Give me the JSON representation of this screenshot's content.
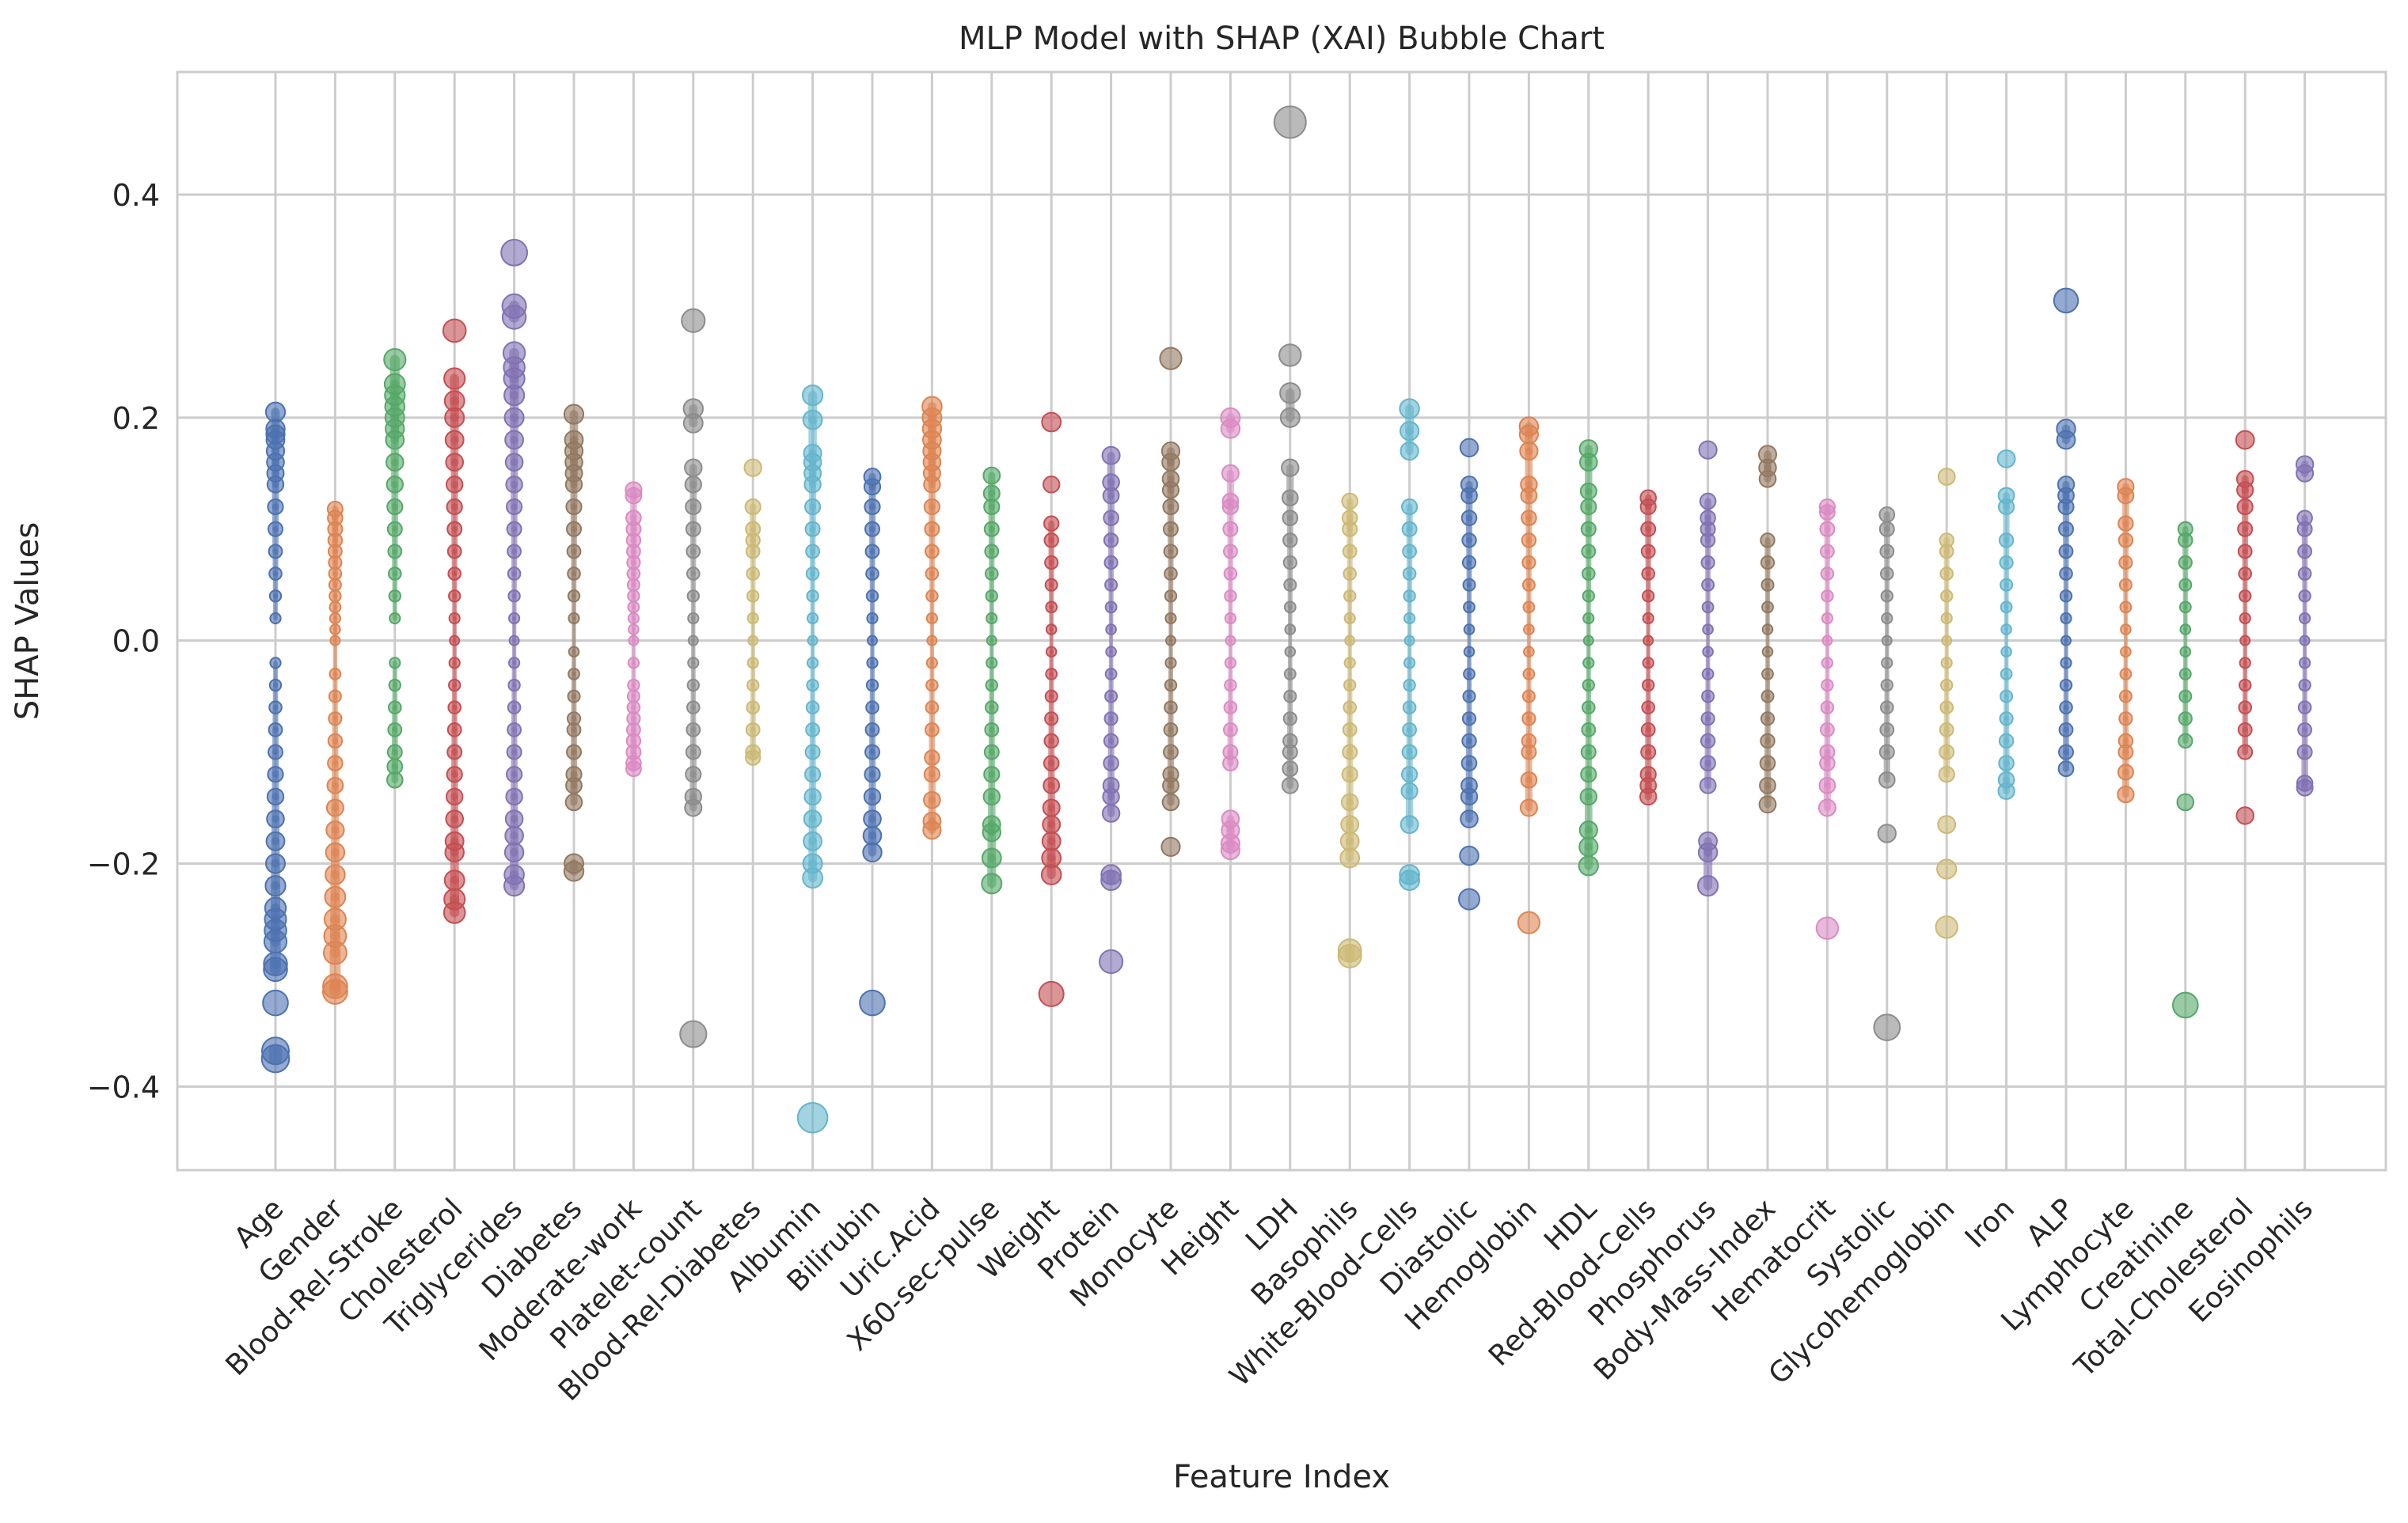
{
  "chart_data": {
    "type": "scatter",
    "title": "MLP Model with SHAP (XAI) Bubble Chart",
    "xlabel": "Feature Index",
    "ylabel": "SHAP Values",
    "ylim": [
      -0.475,
      0.51
    ],
    "yticks": [
      -0.4,
      -0.2,
      0.0,
      0.2,
      0.4
    ],
    "ytick_labels": [
      "−0.4",
      "−0.2",
      "0.0",
      "0.2",
      "0.4"
    ],
    "grid": true,
    "palette": [
      "#4c72b0",
      "#dd8452",
      "#55a868",
      "#c44e52",
      "#8172b3",
      "#937860",
      "#da8bc3",
      "#8c8c8c",
      "#ccb974",
      "#64b5cd"
    ],
    "categories": [
      "Age",
      "Gender",
      "Blood-Rel-Stroke",
      "Cholesterol",
      "Triglycerides",
      "Diabetes",
      "Moderate-work",
      "Platelet-count",
      "Blood-Rel-Diabetes",
      "Albumin",
      "Bilirubin",
      "Uric.Acid",
      "X60-sec-pulse",
      "Weight",
      "Protein",
      "Monocyte",
      "Height",
      "LDH",
      "Basophils",
      "White-Blood-Cells",
      "Diastolic",
      "Hemoglobin",
      "HDL",
      "Red-Blood-Cells",
      "Phosphorus",
      "Body-Mass-Index",
      "Hematocrit",
      "Systolic",
      "Glycohemoglobin",
      "Iron",
      "ALP",
      "Lymphocyte",
      "Creatinine",
      "Total-Cholesterol",
      "Eosinophils"
    ],
    "series": [
      {
        "values": [
          0.205,
          0.19,
          0.185,
          0.18,
          0.17,
          0.16,
          0.15,
          0.14,
          0.12,
          0.1,
          0.08,
          0.06,
          0.04,
          0.02,
          -0.02,
          -0.04,
          -0.06,
          -0.08,
          -0.1,
          -0.12,
          -0.14,
          -0.16,
          -0.18,
          -0.2,
          -0.22,
          -0.24,
          -0.25,
          -0.26,
          -0.27,
          -0.29,
          -0.295,
          -0.325,
          -0.368,
          -0.375
        ]
      },
      {
        "values": [
          0.118,
          0.11,
          0.1,
          0.09,
          0.08,
          0.07,
          0.06,
          0.05,
          0.04,
          0.03,
          0.02,
          0.01,
          0.0,
          -0.03,
          -0.05,
          -0.07,
          -0.09,
          -0.11,
          -0.13,
          -0.15,
          -0.17,
          -0.19,
          -0.21,
          -0.23,
          -0.25,
          -0.265,
          -0.28,
          -0.31,
          -0.315
        ]
      },
      {
        "values": [
          0.252,
          0.23,
          0.22,
          0.21,
          0.2,
          0.19,
          0.18,
          0.16,
          0.14,
          0.12,
          0.1,
          0.08,
          0.06,
          0.04,
          0.02,
          -0.02,
          -0.04,
          -0.06,
          -0.08,
          -0.1,
          -0.113,
          -0.125
        ]
      },
      {
        "values": [
          0.278,
          0.235,
          0.215,
          0.2,
          0.18,
          0.16,
          0.14,
          0.12,
          0.1,
          0.08,
          0.06,
          0.04,
          0.02,
          0.0,
          -0.02,
          -0.04,
          -0.06,
          -0.08,
          -0.1,
          -0.12,
          -0.14,
          -0.16,
          -0.18,
          -0.19,
          -0.215,
          -0.232,
          -0.244
        ]
      },
      {
        "values": [
          0.348,
          0.3,
          0.29,
          0.258,
          0.245,
          0.235,
          0.22,
          0.2,
          0.18,
          0.16,
          0.14,
          0.12,
          0.1,
          0.08,
          0.06,
          0.04,
          0.02,
          0.0,
          -0.02,
          -0.04,
          -0.06,
          -0.08,
          -0.1,
          -0.12,
          -0.14,
          -0.16,
          -0.175,
          -0.19,
          -0.21,
          -0.22
        ]
      },
      {
        "values": [
          0.203,
          0.18,
          0.17,
          0.16,
          0.15,
          0.14,
          0.12,
          0.1,
          0.08,
          0.06,
          0.04,
          0.02,
          -0.01,
          -0.03,
          -0.05,
          -0.07,
          -0.08,
          -0.1,
          -0.12,
          -0.13,
          -0.145,
          -0.2,
          -0.207
        ]
      },
      {
        "values": [
          0.135,
          0.13,
          0.11,
          0.1,
          0.09,
          0.08,
          0.07,
          0.06,
          0.05,
          0.04,
          0.03,
          0.02,
          0.01,
          0.0,
          -0.02,
          -0.04,
          -0.05,
          -0.06,
          -0.07,
          -0.08,
          -0.09,
          -0.1,
          -0.11,
          -0.115
        ]
      },
      {
        "values": [
          0.287,
          0.208,
          0.195,
          0.155,
          0.14,
          0.12,
          0.1,
          0.08,
          0.06,
          0.04,
          0.02,
          0.0,
          -0.02,
          -0.04,
          -0.06,
          -0.08,
          -0.1,
          -0.12,
          -0.14,
          -0.15,
          -0.353
        ]
      },
      {
        "values": [
          0.155,
          0.12,
          0.1,
          0.09,
          0.08,
          0.06,
          0.04,
          0.02,
          0.0,
          -0.02,
          -0.04,
          -0.06,
          -0.08,
          -0.1,
          -0.105
        ]
      },
      {
        "values": [
          0.22,
          0.198,
          0.168,
          0.16,
          0.15,
          0.14,
          0.12,
          0.1,
          0.08,
          0.06,
          0.04,
          0.02,
          0.0,
          -0.02,
          -0.04,
          -0.06,
          -0.08,
          -0.1,
          -0.12,
          -0.14,
          -0.16,
          -0.18,
          -0.2,
          -0.213,
          -0.428
        ]
      },
      {
        "values": [
          0.147,
          0.138,
          0.12,
          0.1,
          0.08,
          0.06,
          0.04,
          0.02,
          0.0,
          -0.02,
          -0.04,
          -0.06,
          -0.08,
          -0.1,
          -0.12,
          -0.14,
          -0.16,
          -0.175,
          -0.19,
          -0.325
        ]
      },
      {
        "values": [
          0.21,
          0.2,
          0.19,
          0.18,
          0.17,
          0.16,
          0.15,
          0.14,
          0.12,
          0.1,
          0.08,
          0.06,
          0.04,
          0.02,
          0.0,
          -0.02,
          -0.04,
          -0.06,
          -0.08,
          -0.105,
          -0.12,
          -0.143,
          -0.162,
          -0.17
        ]
      },
      {
        "values": [
          0.148,
          0.132,
          0.12,
          0.1,
          0.08,
          0.06,
          0.04,
          0.02,
          0.0,
          -0.02,
          -0.04,
          -0.06,
          -0.08,
          -0.1,
          -0.12,
          -0.14,
          -0.165,
          -0.172,
          -0.195,
          -0.218
        ]
      },
      {
        "values": [
          0.196,
          0.14,
          0.105,
          0.09,
          0.07,
          0.05,
          0.03,
          0.01,
          -0.01,
          -0.03,
          -0.05,
          -0.07,
          -0.09,
          -0.11,
          -0.13,
          -0.15,
          -0.165,
          -0.18,
          -0.195,
          -0.21,
          -0.317
        ]
      },
      {
        "values": [
          0.166,
          0.142,
          0.13,
          0.11,
          0.09,
          0.07,
          0.05,
          0.03,
          0.01,
          -0.01,
          -0.03,
          -0.05,
          -0.07,
          -0.09,
          -0.11,
          -0.13,
          -0.14,
          -0.155,
          -0.21,
          -0.215,
          -0.288
        ]
      },
      {
        "values": [
          0.253,
          0.17,
          0.16,
          0.145,
          0.135,
          0.12,
          0.1,
          0.08,
          0.06,
          0.04,
          0.02,
          0.0,
          -0.02,
          -0.04,
          -0.06,
          -0.08,
          -0.1,
          -0.12,
          -0.13,
          -0.145,
          -0.185
        ]
      },
      {
        "values": [
          0.2,
          0.19,
          0.15,
          0.125,
          0.12,
          0.1,
          0.08,
          0.06,
          0.04,
          0.02,
          0.0,
          -0.02,
          -0.04,
          -0.06,
          -0.08,
          -0.1,
          -0.11,
          -0.16,
          -0.17,
          -0.182,
          -0.188
        ]
      },
      {
        "values": [
          0.465,
          0.256,
          0.222,
          0.2,
          0.155,
          0.128,
          0.11,
          0.09,
          0.07,
          0.05,
          0.03,
          0.01,
          -0.01,
          -0.03,
          -0.05,
          -0.07,
          -0.09,
          -0.1,
          -0.115,
          -0.13
        ]
      },
      {
        "values": [
          0.125,
          0.11,
          0.1,
          0.08,
          0.06,
          0.04,
          0.02,
          0.0,
          -0.02,
          -0.04,
          -0.06,
          -0.08,
          -0.1,
          -0.12,
          -0.145,
          -0.165,
          -0.18,
          -0.195,
          -0.278,
          -0.283
        ]
      },
      {
        "values": [
          0.208,
          0.188,
          0.17,
          0.12,
          0.1,
          0.08,
          0.06,
          0.04,
          0.02,
          0.0,
          -0.02,
          -0.04,
          -0.06,
          -0.08,
          -0.1,
          -0.12,
          -0.135,
          -0.165,
          -0.21,
          -0.215
        ]
      },
      {
        "values": [
          0.173,
          0.14,
          0.13,
          0.11,
          0.09,
          0.07,
          0.05,
          0.03,
          0.01,
          -0.01,
          -0.03,
          -0.05,
          -0.07,
          -0.09,
          -0.11,
          -0.13,
          -0.14,
          -0.16,
          -0.193,
          -0.232
        ]
      },
      {
        "values": [
          0.192,
          0.185,
          0.17,
          0.14,
          0.13,
          0.11,
          0.09,
          0.07,
          0.05,
          0.03,
          0.01,
          -0.01,
          -0.03,
          -0.05,
          -0.07,
          -0.09,
          -0.1,
          -0.125,
          -0.15,
          -0.253
        ]
      },
      {
        "values": [
          0.172,
          0.16,
          0.134,
          0.12,
          0.1,
          0.08,
          0.06,
          0.04,
          0.02,
          0.0,
          -0.02,
          -0.04,
          -0.06,
          -0.08,
          -0.1,
          -0.12,
          -0.14,
          -0.17,
          -0.185,
          -0.202
        ]
      },
      {
        "values": [
          0.128,
          0.12,
          0.1,
          0.08,
          0.06,
          0.04,
          0.02,
          0.0,
          -0.02,
          -0.04,
          -0.06,
          -0.08,
          -0.1,
          -0.12,
          -0.13,
          -0.14
        ]
      },
      {
        "values": [
          0.171,
          0.125,
          0.11,
          0.1,
          0.09,
          0.07,
          0.05,
          0.03,
          0.01,
          -0.01,
          -0.03,
          -0.05,
          -0.07,
          -0.09,
          -0.11,
          -0.13,
          -0.18,
          -0.19,
          -0.22
        ]
      },
      {
        "values": [
          0.167,
          0.155,
          0.145,
          0.09,
          0.07,
          0.05,
          0.03,
          0.01,
          -0.01,
          -0.03,
          -0.05,
          -0.07,
          -0.09,
          -0.11,
          -0.13,
          -0.147
        ]
      },
      {
        "values": [
          0.12,
          0.115,
          0.1,
          0.08,
          0.06,
          0.04,
          0.02,
          0.0,
          -0.02,
          -0.04,
          -0.06,
          -0.08,
          -0.1,
          -0.11,
          -0.13,
          -0.15,
          -0.258
        ]
      },
      {
        "values": [
          0.113,
          0.1,
          0.08,
          0.06,
          0.04,
          0.02,
          0.0,
          -0.02,
          -0.04,
          -0.06,
          -0.08,
          -0.1,
          -0.125,
          -0.173,
          -0.347
        ]
      },
      {
        "values": [
          0.147,
          0.09,
          0.08,
          0.06,
          0.04,
          0.02,
          0.0,
          -0.02,
          -0.04,
          -0.06,
          -0.08,
          -0.1,
          -0.12,
          -0.165,
          -0.205,
          -0.257
        ]
      },
      {
        "values": [
          0.163,
          0.13,
          0.12,
          0.09,
          0.07,
          0.05,
          0.03,
          0.01,
          -0.01,
          -0.03,
          -0.05,
          -0.07,
          -0.09,
          -0.11,
          -0.125,
          -0.135
        ]
      },
      {
        "values": [
          0.305,
          0.19,
          0.18,
          0.14,
          0.13,
          0.12,
          0.1,
          0.08,
          0.06,
          0.04,
          0.02,
          0.0,
          -0.02,
          -0.04,
          -0.06,
          -0.08,
          -0.1,
          -0.115
        ]
      },
      {
        "values": [
          0.138,
          0.13,
          0.105,
          0.09,
          0.07,
          0.05,
          0.03,
          0.01,
          -0.01,
          -0.03,
          -0.05,
          -0.07,
          -0.09,
          -0.1,
          -0.118,
          -0.138
        ]
      },
      {
        "values": [
          0.1,
          0.09,
          0.07,
          0.05,
          0.03,
          0.01,
          -0.01,
          -0.03,
          -0.05,
          -0.07,
          -0.09,
          -0.145,
          -0.327
        ]
      },
      {
        "values": [
          0.18,
          0.145,
          0.135,
          0.12,
          0.1,
          0.08,
          0.06,
          0.04,
          0.02,
          0.0,
          -0.02,
          -0.04,
          -0.06,
          -0.08,
          -0.1,
          -0.157
        ]
      },
      {
        "values": [
          0.158,
          0.15,
          0.11,
          0.1,
          0.08,
          0.06,
          0.04,
          0.02,
          0.0,
          -0.02,
          -0.04,
          -0.06,
          -0.08,
          -0.1,
          -0.128,
          -0.132
        ]
      }
    ]
  }
}
